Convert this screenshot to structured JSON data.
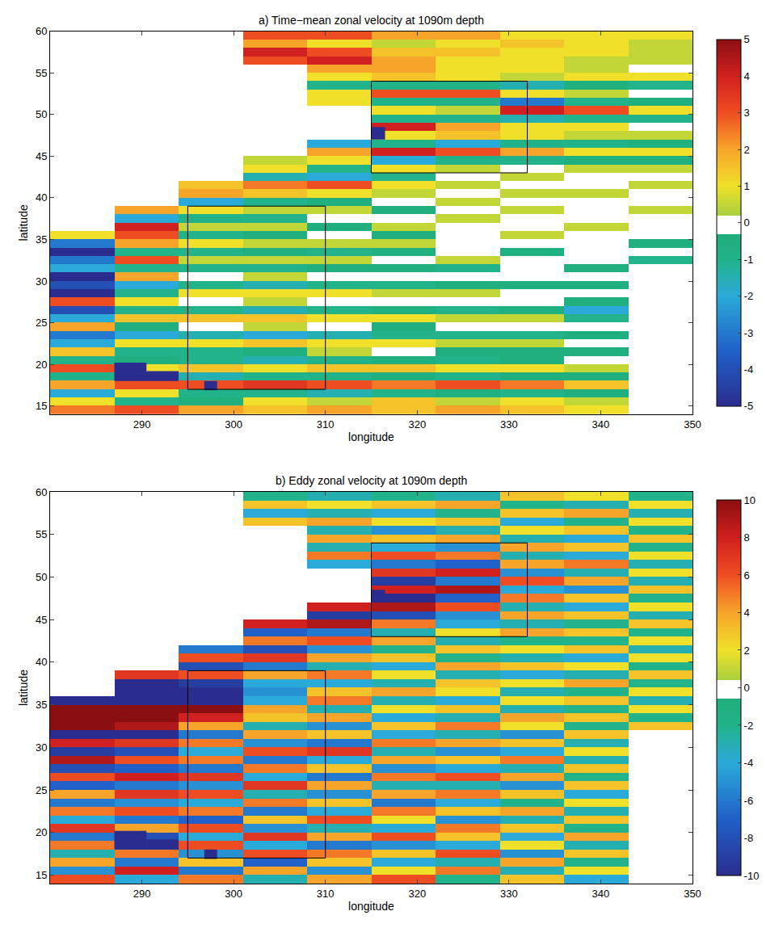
{
  "chart_data": [
    {
      "type": "heatmap",
      "title": "a) Time−mean zonal velocity at 1090m depth",
      "x_label": "longitude",
      "y_label": "latitude",
      "xlim": [
        280,
        350
      ],
      "xticks": [
        290,
        300,
        310,
        320,
        330,
        340,
        350
      ],
      "ylim": [
        14,
        60
      ],
      "yticks": [
        15,
        20,
        25,
        30,
        35,
        40,
        45,
        50,
        55,
        60
      ],
      "zlim": [
        -5,
        5
      ],
      "zticks": [
        -5,
        -4,
        -3,
        -2,
        -1,
        0,
        1,
        2,
        3,
        4,
        5
      ],
      "x": [
        283.5,
        290.5,
        297.5,
        304.5,
        311.5,
        318.5,
        325.5,
        332.5,
        339.5,
        346.5
      ],
      "y": [
        14.5,
        15.5,
        16.5,
        17.5,
        18.5,
        19.5,
        20.5,
        21.5,
        22.5,
        23.5,
        24.5,
        25.5,
        26.5,
        27.5,
        28.5,
        29.5,
        30.5,
        31.5,
        32.5,
        33.5,
        34.5,
        35.5,
        36.5,
        37.5,
        38.5,
        39.5,
        40.5,
        41.5,
        42.5,
        43.5,
        44.5,
        45.5,
        46.5,
        47.5,
        48.5,
        49.5,
        50.5,
        51.5,
        52.5,
        53.5,
        54.5,
        55.5,
        56.5,
        57.5,
        58.5,
        59.5
      ],
      "z": [
        [
          2.5,
          3,
          2,
          1.5,
          2,
          1.5,
          2,
          1.5,
          1,
          null
        ],
        [
          1,
          -1,
          -0.5,
          1,
          0.5,
          1.5,
          0.5,
          1,
          0.5,
          null
        ],
        [
          -2,
          1,
          -1,
          -1,
          -1.5,
          -1,
          -0.5,
          -1,
          -0.5,
          null
        ],
        [
          2,
          3,
          3,
          3.5,
          3,
          2.5,
          3,
          2.5,
          1.5,
          null
        ],
        [
          -1,
          -5,
          -1.5,
          -1,
          -1,
          -0.5,
          -1,
          -0.5,
          -0.5,
          null
        ],
        [
          3,
          1,
          1.5,
          1,
          1.5,
          1.5,
          1,
          1,
          0.5,
          null
        ],
        [
          -1,
          -0.5,
          -1,
          -1.5,
          -1,
          -0.5,
          -1,
          -0.5,
          0,
          null
        ],
        [
          1.5,
          -1,
          -1,
          -0.5,
          0.5,
          0,
          -0.5,
          -0.5,
          -0.5,
          null
        ],
        [
          -2,
          1,
          1,
          1.5,
          1,
          1,
          0.5,
          0.5,
          0,
          null
        ],
        [
          -3,
          -2,
          -1.5,
          -2,
          -1.5,
          -1,
          -1,
          -1,
          -0.5,
          null
        ],
        [
          2,
          -0.5,
          0,
          0.5,
          0,
          -0.5,
          0,
          0,
          0,
          null
        ],
        [
          -2,
          1.5,
          1.5,
          1.5,
          1,
          1,
          0.5,
          0.5,
          -1,
          null
        ],
        [
          -4,
          -1,
          -1,
          -1.5,
          -1,
          -0.5,
          -1,
          -0.5,
          -2,
          null
        ],
        [
          3,
          1,
          0,
          0.5,
          0,
          0,
          0,
          0,
          -0.5,
          null
        ],
        [
          -5,
          -1,
          1,
          1,
          1,
          0.5,
          0.5,
          0,
          0,
          null
        ],
        [
          -4,
          -2,
          -1,
          -1.5,
          -1,
          -1,
          -0.5,
          -0.5,
          -0.5,
          null
        ],
        [
          -5,
          2,
          0,
          0.5,
          0,
          0,
          0,
          0,
          0,
          null
        ],
        [
          -2,
          -1,
          -1,
          -1,
          -0.5,
          -0.5,
          -1,
          0,
          -0.5,
          null
        ],
        [
          -3,
          3,
          0.5,
          0.5,
          0.5,
          0,
          0.5,
          0,
          0,
          -1
        ],
        [
          -5,
          -1,
          -1,
          -0.5,
          -1,
          -0.5,
          0,
          -0.5,
          0,
          0
        ],
        [
          -3,
          2,
          1,
          0.5,
          0.5,
          0.5,
          0,
          0,
          0,
          -0.5
        ],
        [
          1,
          3,
          -1,
          -0.5,
          0,
          -0.5,
          0,
          0.5,
          0,
          0
        ],
        [
          null,
          4,
          0.5,
          0.5,
          -0.5,
          0.5,
          0,
          0,
          0.5,
          0
        ],
        [
          null,
          -2,
          -1,
          -1,
          0,
          0,
          0.5,
          0,
          0,
          0
        ],
        [
          null,
          2,
          1,
          0.5,
          0.5,
          -0.5,
          0,
          0.5,
          0,
          0.5
        ],
        [
          null,
          null,
          -2,
          -1,
          -0.5,
          0,
          0.5,
          0,
          0,
          0
        ],
        [
          null,
          null,
          2,
          1.5,
          1,
          0.5,
          0,
          0.5,
          0.5,
          0
        ],
        [
          null,
          null,
          1.5,
          2.5,
          3,
          1,
          0.5,
          0,
          0,
          0.5
        ],
        [
          null,
          null,
          null,
          -1.5,
          -2,
          -1,
          0,
          0.5,
          0,
          0
        ],
        [
          null,
          null,
          null,
          1,
          -1,
          1,
          0.5,
          0,
          0.5,
          0.5
        ],
        [
          null,
          null,
          null,
          0.5,
          1,
          -2,
          -1,
          -1,
          -0.5,
          -0.5
        ],
        [
          null,
          null,
          null,
          null,
          2,
          4,
          3,
          2,
          1,
          1
        ],
        [
          null,
          null,
          null,
          null,
          -2,
          -1,
          -2,
          -1,
          -1,
          -0.5
        ],
        [
          null,
          null,
          null,
          null,
          null,
          1,
          1.5,
          1,
          0.5,
          0.5
        ],
        [
          null,
          null,
          null,
          null,
          null,
          4,
          2,
          1,
          1,
          0
        ],
        [
          null,
          null,
          null,
          null,
          null,
          -1,
          -1,
          -1.5,
          -1,
          -1
        ],
        [
          null,
          null,
          null,
          null,
          null,
          1,
          0.5,
          4,
          3,
          1
        ],
        [
          null,
          null,
          null,
          null,
          1,
          -1,
          -1,
          -3,
          -1,
          -0.5
        ],
        [
          null,
          null,
          null,
          null,
          1,
          3,
          3,
          1,
          0.5,
          0
        ],
        [
          null,
          null,
          null,
          null,
          -1,
          -1,
          -1,
          -1.5,
          -0.5,
          -1
        ],
        [
          null,
          null,
          null,
          null,
          1,
          1.5,
          1,
          0.5,
          1,
          1
        ],
        [
          null,
          null,
          null,
          null,
          2,
          2,
          1,
          1,
          0.5,
          0
        ],
        [
          null,
          null,
          null,
          3,
          4,
          2,
          1,
          1,
          0.5,
          0.5
        ],
        [
          null,
          null,
          null,
          4,
          3,
          1.5,
          1.5,
          1,
          1,
          0.5
        ],
        [
          null,
          null,
          null,
          2,
          1,
          0.5,
          1,
          1.5,
          1,
          0.5
        ],
        [
          null,
          null,
          null,
          3,
          3,
          2,
          2,
          1,
          1,
          1
        ]
      ],
      "boxes": [
        {
          "x": [
            295,
            310
          ],
          "y": [
            17,
            39
          ]
        },
        {
          "x": [
            315,
            332
          ],
          "y": [
            43,
            54
          ]
        }
      ],
      "blocks": [
        {
          "x": [
            287,
            290.5
          ],
          "y": [
            18,
            20.2
          ]
        },
        {
          "x": [
            290.5,
            294
          ],
          "y": [
            18,
            19.2
          ]
        },
        {
          "x": [
            296.8,
            298.2
          ],
          "y": [
            16.9,
            18
          ]
        },
        {
          "x": [
            315,
            316.5
          ],
          "y": [
            47,
            48.5
          ]
        }
      ]
    },
    {
      "type": "heatmap",
      "title": "b) Eddy zonal velocity at 1090m depth",
      "x_label": "longitude",
      "y_label": "latitude",
      "xlim": [
        280,
        350
      ],
      "xticks": [
        290,
        300,
        310,
        320,
        330,
        340,
        350
      ],
      "ylim": [
        14,
        60
      ],
      "yticks": [
        15,
        20,
        25,
        30,
        35,
        40,
        45,
        50,
        55,
        60
      ],
      "zlim": [
        -10,
        10
      ],
      "zticks": [
        -10,
        -8,
        -6,
        -4,
        -2,
        0,
        2,
        4,
        6,
        8,
        10
      ],
      "x": [
        283.5,
        290.5,
        297.5,
        304.5,
        311.5,
        318.5,
        325.5,
        332.5,
        339.5,
        346.5
      ],
      "y": [
        14.5,
        15.5,
        16.5,
        17.5,
        18.5,
        19.5,
        20.5,
        21.5,
        22.5,
        23.5,
        24.5,
        25.5,
        26.5,
        27.5,
        28.5,
        29.5,
        30.5,
        31.5,
        32.5,
        33.5,
        34.5,
        35.5,
        36.5,
        37.5,
        38.5,
        39.5,
        40.5,
        41.5,
        42.5,
        43.5,
        44.5,
        45.5,
        46.5,
        47.5,
        48.5,
        49.5,
        50.5,
        51.5,
        52.5,
        53.5,
        54.5,
        55.5,
        56.5,
        57.5,
        58.5,
        59.5
      ],
      "z": [
        [
          6,
          -4,
          5,
          -3,
          4,
          6,
          -2,
          3,
          -4,
          null
        ],
        [
          -5,
          8,
          -6,
          4,
          -5,
          2,
          5,
          -3,
          2,
          null
        ],
        [
          4,
          -6,
          3,
          -7,
          3,
          -4,
          -3,
          4,
          -2,
          null
        ],
        [
          -3,
          5,
          -5,
          6,
          5,
          3,
          6,
          -5,
          3,
          null
        ],
        [
          5,
          -8,
          6,
          -4,
          -6,
          -5,
          -4,
          2,
          -3,
          null
        ],
        [
          -6,
          -8,
          -4,
          7,
          4,
          6,
          3,
          -4,
          4,
          null
        ],
        [
          7,
          4,
          6,
          -5,
          -3,
          -4,
          5,
          3,
          -2,
          null
        ],
        [
          -4,
          -6,
          -7,
          3,
          6,
          2,
          -5,
          -3,
          3,
          null
        ],
        [
          5,
          6,
          5,
          -6,
          -4,
          5,
          3,
          4,
          -3,
          null
        ],
        [
          -6,
          -5,
          -4,
          5,
          3,
          -6,
          -4,
          -2,
          2,
          null
        ],
        [
          4,
          7,
          6,
          -3,
          -5,
          4,
          5,
          3,
          -4,
          null
        ],
        [
          -7,
          -6,
          -5,
          7,
          4,
          -3,
          -3,
          -5,
          3,
          null
        ],
        [
          6,
          8,
          7,
          -4,
          -6,
          5,
          6,
          4,
          -2,
          null
        ],
        [
          -8,
          -7,
          -6,
          5,
          3,
          -5,
          -4,
          -3,
          3,
          null
        ],
        [
          9,
          6,
          5,
          -6,
          -4,
          4,
          3,
          5,
          -3,
          null
        ],
        [
          -9,
          -8,
          -4,
          6,
          7,
          -3,
          -5,
          -4,
          2,
          null
        ],
        [
          8,
          7,
          5,
          -5,
          -6,
          5,
          4,
          3,
          -3,
          null
        ],
        [
          -10,
          -10,
          -6,
          4,
          3,
          -4,
          -3,
          -5,
          3,
          null
        ],
        [
          10,
          9,
          4,
          -3,
          -5,
          3,
          5,
          2,
          -2,
          3
        ],
        [
          10,
          10,
          8,
          3,
          4,
          -4,
          -3,
          4,
          3,
          -2
        ],
        [
          10,
          10,
          10,
          4,
          -3,
          2,
          3,
          -3,
          -2,
          2
        ],
        [
          -10,
          -10,
          -10,
          -4,
          5,
          -3,
          -4,
          2,
          3,
          -3
        ],
        [
          null,
          -10,
          -10,
          -5,
          3,
          4,
          2,
          -3,
          -2,
          2
        ],
        [
          null,
          -10,
          -9,
          -4,
          -4,
          -3,
          3,
          2,
          4,
          -2
        ],
        [
          null,
          7,
          6,
          4,
          5,
          2,
          -3,
          -4,
          -3,
          3
        ],
        [
          null,
          null,
          -8,
          -6,
          -3,
          -4,
          4,
          3,
          2,
          -2
        ],
        [
          null,
          null,
          6,
          7,
          4,
          3,
          -2,
          -3,
          -4,
          2
        ],
        [
          null,
          null,
          -6,
          -8,
          -5,
          -2,
          3,
          2,
          3,
          -3
        ],
        [
          null,
          null,
          null,
          5,
          6,
          4,
          -3,
          -2,
          -2,
          2
        ],
        [
          null,
          null,
          null,
          -7,
          -6,
          -3,
          2,
          4,
          3,
          -2
        ],
        [
          null,
          null,
          null,
          8,
          9,
          5,
          -4,
          -3,
          -2,
          3
        ],
        [
          null,
          null,
          null,
          null,
          -9,
          -8,
          -5,
          4,
          3,
          -3
        ],
        [
          null,
          null,
          null,
          null,
          8,
          9,
          6,
          -3,
          -4,
          2
        ],
        [
          null,
          null,
          null,
          null,
          null,
          -10,
          -7,
          5,
          3,
          -2
        ],
        [
          null,
          null,
          null,
          null,
          null,
          8,
          9,
          -4,
          -5,
          3
        ],
        [
          null,
          null,
          null,
          null,
          null,
          -9,
          -6,
          6,
          4,
          -3
        ],
        [
          null,
          null,
          null,
          null,
          null,
          7,
          8,
          -5,
          -3,
          2
        ],
        [
          null,
          null,
          null,
          null,
          -4,
          -6,
          -7,
          4,
          5,
          -3
        ],
        [
          null,
          null,
          null,
          null,
          5,
          6,
          5,
          -3,
          -4,
          2
        ],
        [
          null,
          null,
          null,
          null,
          -3,
          -4,
          -5,
          4,
          3,
          -2
        ],
        [
          null,
          null,
          null,
          null,
          4,
          3,
          4,
          -3,
          -4,
          3
        ],
        [
          null,
          null,
          null,
          null,
          -3,
          -5,
          -3,
          2,
          3,
          -2
        ],
        [
          null,
          null,
          null,
          3,
          4,
          2,
          3,
          -4,
          -2,
          2
        ],
        [
          null,
          null,
          null,
          -4,
          -3,
          -4,
          -2,
          3,
          4,
          -3
        ],
        [
          null,
          null,
          null,
          3,
          2,
          3,
          4,
          -2,
          -3,
          2
        ],
        [
          null,
          null,
          null,
          -2,
          -3,
          -2,
          -3,
          3,
          2,
          -2
        ]
      ],
      "boxes": [
        {
          "x": [
            295,
            310
          ],
          "y": [
            17,
            39
          ]
        },
        {
          "x": [
            315,
            332
          ],
          "y": [
            43,
            54
          ]
        }
      ],
      "blocks": [
        {
          "x": [
            287,
            290.5
          ],
          "y": [
            18,
            20.2
          ]
        },
        {
          "x": [
            290.5,
            294
          ],
          "y": [
            18,
            19.2
          ]
        },
        {
          "x": [
            296.8,
            298.2
          ],
          "y": [
            16.9,
            18
          ]
        },
        {
          "x": [
            315,
            316.5
          ],
          "y": [
            47,
            48.5
          ]
        }
      ]
    }
  ]
}
